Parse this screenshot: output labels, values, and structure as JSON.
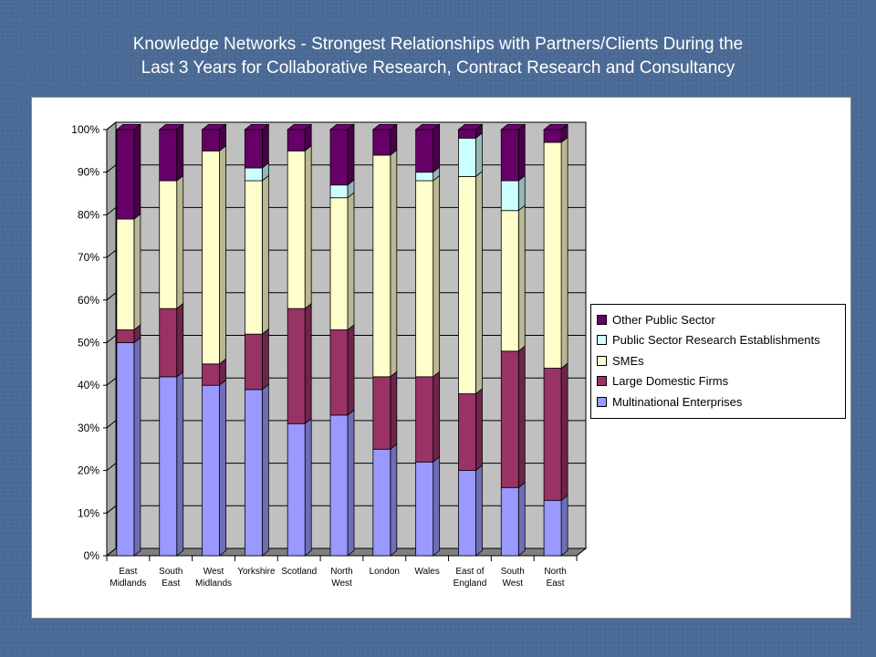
{
  "title": {
    "line1": "Knowledge Networks - Strongest Relationships with Partners/Clients During the",
    "line2": "Last 3 Years for Collaborative Research, Contract Research and Consultancy"
  },
  "chart_data": {
    "type": "bar",
    "stacked": "percent",
    "categories": [
      [
        "East",
        "Midlands"
      ],
      [
        "South",
        "East"
      ],
      [
        "West",
        "Midlands"
      ],
      [
        "Yorkshire"
      ],
      [
        "Scotland"
      ],
      [
        "North",
        "West"
      ],
      [
        "London"
      ],
      [
        "Wales"
      ],
      [
        "East of",
        "England"
      ],
      [
        "South",
        "West"
      ],
      [
        "North",
        "East"
      ]
    ],
    "ylim": [
      0,
      100
    ],
    "yticks": [
      "0%",
      "10%",
      "20%",
      "30%",
      "40%",
      "50%",
      "60%",
      "70%",
      "80%",
      "90%",
      "100%"
    ],
    "grid": true,
    "legend_position": "right",
    "series": [
      {
        "name": "Multinational Enterprises",
        "color": "#9999ff",
        "values": [
          50,
          42,
          40,
          39,
          31,
          33,
          25,
          22,
          20,
          16,
          13
        ]
      },
      {
        "name": "Large Domestic Firms",
        "color": "#993366",
        "values": [
          3,
          16,
          5,
          13,
          27,
          20,
          17,
          20,
          18,
          32,
          31
        ]
      },
      {
        "name": "SMEs",
        "color": "#ffffcc",
        "values": [
          26,
          30,
          50,
          36,
          37,
          31,
          52,
          46,
          51,
          33,
          53
        ]
      },
      {
        "name": "Public Sector Research Establishments",
        "color": "#ccffff",
        "values": [
          0,
          0,
          0,
          3,
          0,
          3,
          0,
          2,
          9,
          7,
          0
        ]
      },
      {
        "name": "Other Public Sector",
        "color": "#660066",
        "values": [
          21,
          12,
          5,
          9,
          5,
          13,
          6,
          10,
          2,
          12,
          3
        ]
      }
    ]
  }
}
